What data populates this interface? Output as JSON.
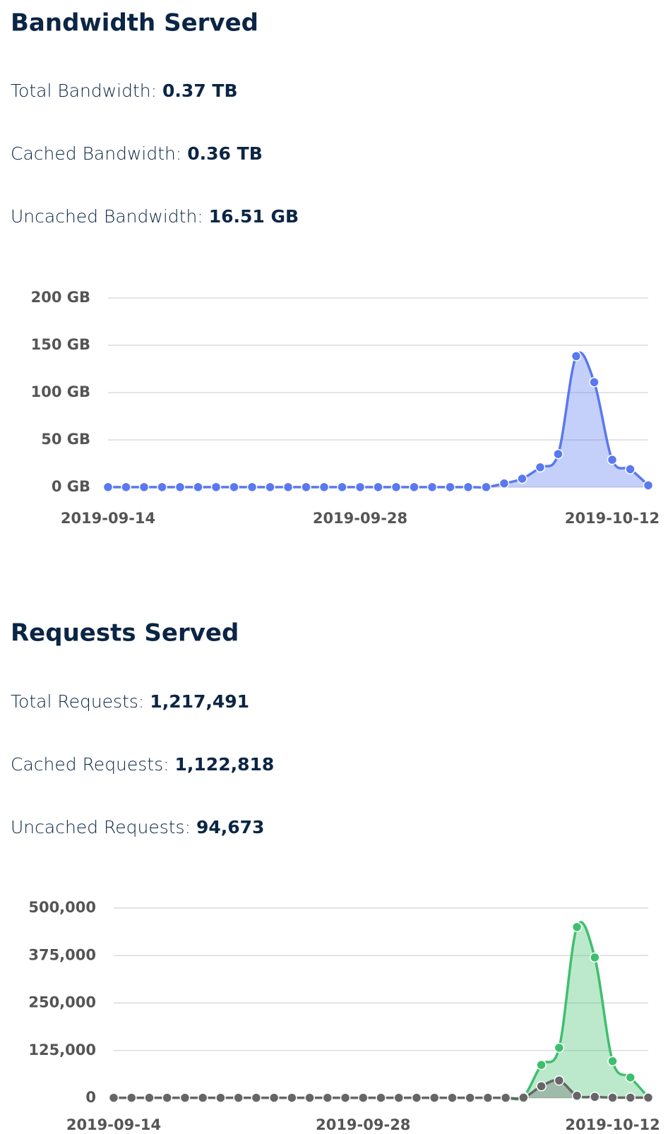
{
  "sections": [
    {
      "title": "Bandwidth Served",
      "stats": [
        {
          "label": "Total Bandwidth:",
          "value": "0.37 TB"
        },
        {
          "label": "Cached Bandwidth:",
          "value": "0.36 TB"
        },
        {
          "label": "Uncached Bandwidth:",
          "value": "16.51 GB"
        }
      ]
    },
    {
      "title": "Requests Served",
      "stats": [
        {
          "label": "Total Requests:",
          "value": "1,217,491"
        },
        {
          "label": "Cached Requests:",
          "value": "1,122,818"
        },
        {
          "label": "Uncached Requests:",
          "value": "94,673"
        }
      ]
    }
  ],
  "chart_data": [
    {
      "type": "area",
      "x": [
        "2019-09-14",
        "2019-09-15",
        "2019-09-16",
        "2019-09-17",
        "2019-09-18",
        "2019-09-19",
        "2019-09-20",
        "2019-09-21",
        "2019-09-22",
        "2019-09-23",
        "2019-09-24",
        "2019-09-25",
        "2019-09-26",
        "2019-09-27",
        "2019-09-28",
        "2019-09-29",
        "2019-09-30",
        "2019-10-01",
        "2019-10-02",
        "2019-10-03",
        "2019-10-04",
        "2019-10-05",
        "2019-10-06",
        "2019-10-07",
        "2019-10-08",
        "2019-10-09",
        "2019-10-10",
        "2019-10-11",
        "2019-10-12",
        "2019-10-13",
        "2019-10-14"
      ],
      "xticks": [
        "2019-09-14",
        "2019-09-28",
        "2019-10-12"
      ],
      "ylim": [
        0,
        200
      ],
      "yticks": [
        {
          "value": 0,
          "label": "0 GB"
        },
        {
          "value": 50,
          "label": "50 GB"
        },
        {
          "value": 100,
          "label": "100 GB"
        },
        {
          "value": 150,
          "label": "150 GB"
        },
        {
          "value": 200,
          "label": "200 GB"
        }
      ],
      "grid": true,
      "series": [
        {
          "color": "#5a78f0",
          "values": [
            0.1,
            0.1,
            0.1,
            0.1,
            0.1,
            0.1,
            0.1,
            0.1,
            0.1,
            0.1,
            0.1,
            0.1,
            0.1,
            0.1,
            0.1,
            0.1,
            0.1,
            0.1,
            0.1,
            0.1,
            0.1,
            0.1,
            4,
            9,
            21,
            35,
            138.5,
            111,
            29,
            19,
            2
          ]
        }
      ]
    },
    {
      "type": "area",
      "x": [
        "2019-09-14",
        "2019-09-15",
        "2019-09-16",
        "2019-09-17",
        "2019-09-18",
        "2019-09-19",
        "2019-09-20",
        "2019-09-21",
        "2019-09-22",
        "2019-09-23",
        "2019-09-24",
        "2019-09-25",
        "2019-09-26",
        "2019-09-27",
        "2019-09-28",
        "2019-09-29",
        "2019-09-30",
        "2019-10-01",
        "2019-10-02",
        "2019-10-03",
        "2019-10-04",
        "2019-10-05",
        "2019-10-06",
        "2019-10-07",
        "2019-10-08",
        "2019-10-09",
        "2019-10-10",
        "2019-10-11",
        "2019-10-12",
        "2019-10-13",
        "2019-10-14"
      ],
      "xticks": [
        "2019-09-14",
        "2019-09-28",
        "2019-10-12"
      ],
      "ylim": [
        0,
        500000
      ],
      "yticks": [
        0,
        {
          "value": 125000,
          "label": "125,000"
        },
        {
          "value": 250000,
          "label": "250,000"
        },
        {
          "value": 375000,
          "label": "375,000"
        },
        {
          "value": 500000,
          "label": "500,000"
        }
      ],
      "grid": true,
      "series": [
        {
          "color": "#3fbf6e",
          "values": [
            500,
            500,
            500,
            500,
            500,
            500,
            500,
            500,
            500,
            500,
            500,
            500,
            500,
            500,
            500,
            500,
            500,
            500,
            500,
            500,
            500,
            500,
            500,
            4000,
            87000,
            132000,
            450000,
            370000,
            97000,
            54000,
            2000
          ]
        },
        {
          "color": "#666666",
          "values": [
            500,
            500,
            500,
            500,
            500,
            500,
            500,
            500,
            500,
            500,
            500,
            500,
            500,
            500,
            500,
            500,
            500,
            500,
            500,
            500,
            500,
            500,
            500,
            1000,
            31000,
            46000,
            6000,
            3000,
            1000,
            1000,
            1000
          ]
        }
      ]
    }
  ]
}
